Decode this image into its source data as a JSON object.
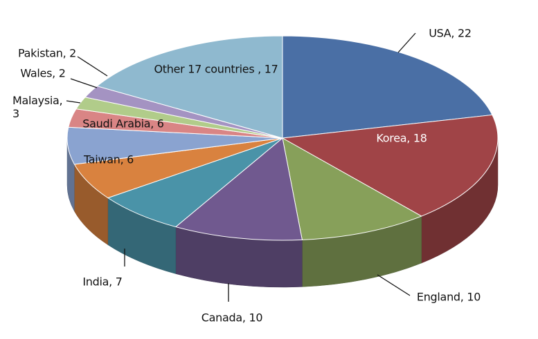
{
  "chart_data": {
    "type": "pie3d",
    "value_labels": [
      "USA, 22",
      "Korea, 18",
      "England, 10",
      "Canada, 10",
      "India, 7",
      "Taiwan, 6",
      "Saudi Arabia, 6",
      "Malaysia, 3",
      "Wales, 2",
      "Pakistan, 2",
      "Other 17 countries , 17"
    ],
    "values": [
      22,
      18,
      10,
      10,
      7,
      6,
      6,
      3,
      2,
      2,
      17
    ],
    "colors": [
      "#4a6fa5",
      "#a04447",
      "#87a05a",
      "#70598f",
      "#4a93a8",
      "#d9823f",
      "#8aa3d0",
      "#d98585",
      "#b1cc8a",
      "#a493c2",
      "#8fb9cf"
    ]
  }
}
